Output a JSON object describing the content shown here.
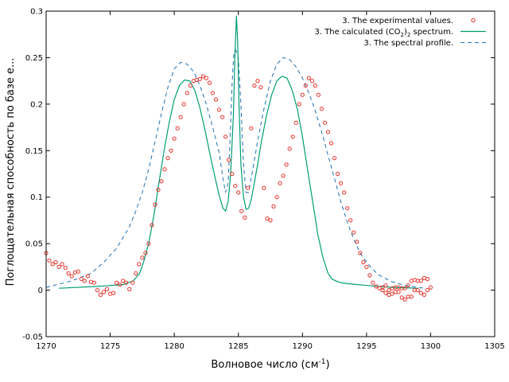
{
  "chart_data": {
    "type": "line",
    "title": "",
    "xlabel": "Волновое число (см",
    "xlabel_sup": "-1",
    "xlabel_end": ")",
    "ylabel": "Поглощательная способность по базе e...",
    "xlim": [
      1270,
      1305
    ],
    "ylim": [
      -0.05,
      0.3
    ],
    "xticks": [
      "1270",
      "1275",
      "1280",
      "1285",
      "1290",
      "1295",
      "1300",
      "1305"
    ],
    "yticks": [
      "-0.05",
      "0",
      "0.05",
      "0.1",
      "0.15",
      "0.2",
      "0.25",
      "0.3"
    ],
    "grid": false,
    "legend_position": "top-right",
    "legend": {
      "exp": "3.  The experimental values.",
      "calc_pre": "3. The calculated (CO",
      "calc_sub1": "2",
      "calc_mid": ")",
      "calc_sub2": "2",
      "calc_post": " spectrum.",
      "profile": "3. The spectral profile."
    },
    "colors": {
      "exp": "#e8302a",
      "calc": "#009e73",
      "profile": "#1f6fb4"
    },
    "series": [
      {
        "name": "3.  The experimental values.",
        "style": "points",
        "x": [
          1270.0,
          1270.25,
          1270.5,
          1270.75,
          1271.0,
          1271.25,
          1271.5,
          1271.75,
          1272.0,
          1272.25,
          1272.5,
          1272.75,
          1273.0,
          1273.25,
          1273.5,
          1273.75,
          1274.0,
          1274.25,
          1274.5,
          1274.75,
          1275.0,
          1275.25,
          1275.5,
          1275.75,
          1276.0,
          1276.25,
          1276.5,
          1276.75,
          1277.0,
          1277.25,
          1277.5,
          1277.75,
          1278.0,
          1278.25,
          1278.5,
          1278.75,
          1279.0,
          1279.25,
          1279.5,
          1279.75,
          1280.0,
          1280.25,
          1280.5,
          1280.75,
          1281.0,
          1281.25,
          1281.5,
          1281.75,
          1282.0,
          1282.25,
          1282.5,
          1282.75,
          1283.0,
          1283.25,
          1283.5,
          1283.75,
          1284.0,
          1284.25,
          1284.5,
          1284.75,
          1285.0,
          1285.25,
          1285.5,
          1285.75,
          1286.0,
          1286.25,
          1286.5,
          1286.75,
          1287.0,
          1287.25,
          1287.5,
          1287.75,
          1288.0,
          1288.25,
          1288.5,
          1288.75,
          1289.0,
          1289.25,
          1289.5,
          1289.75,
          1290.0,
          1290.25,
          1290.5,
          1290.75,
          1291.0,
          1291.25,
          1291.5,
          1291.75,
          1292.0,
          1292.25,
          1292.5,
          1292.75,
          1293.0,
          1293.25,
          1293.5,
          1293.75,
          1294.0,
          1294.25,
          1294.5,
          1294.75,
          1295.0,
          1295.25,
          1295.5,
          1295.75,
          1296.0,
          1296.25,
          1296.5,
          1296.75,
          1297.0,
          1297.25,
          1297.5,
          1297.75,
          1298.0,
          1298.25,
          1298.5,
          1298.75,
          1299.0,
          1299.25,
          1299.5,
          1299.75,
          1300.0
        ],
        "y": [
          0.04,
          0.032,
          0.028,
          0.03,
          0.025,
          0.028,
          0.024,
          0.018,
          0.015,
          0.019,
          0.02,
          0.012,
          0.01,
          0.015,
          0.009,
          0.008,
          0.0,
          -0.005,
          -0.002,
          0.001,
          -0.004,
          -0.003,
          0.008,
          0.006,
          0.01,
          0.008,
          0.001,
          0.008,
          0.018,
          0.028,
          0.035,
          0.04,
          0.05,
          0.07,
          0.092,
          0.108,
          0.117,
          0.13,
          0.142,
          0.15,
          0.163,
          0.174,
          0.186,
          0.2,
          0.212,
          0.22,
          0.225,
          0.226,
          0.227,
          0.23,
          0.228,
          0.223,
          0.212,
          0.205,
          0.194,
          0.186,
          0.165,
          0.14,
          0.125,
          0.112,
          0.105,
          0.085,
          0.078,
          0.11,
          0.174,
          0.22,
          0.225,
          0.218,
          0.11,
          0.077,
          0.075,
          0.09,
          0.1,
          0.115,
          0.123,
          0.135,
          0.152,
          0.165,
          0.18,
          0.2,
          0.21,
          0.22,
          0.228,
          0.225,
          0.22,
          0.21,
          0.195,
          0.18,
          0.17,
          0.158,
          0.142,
          0.125,
          0.115,
          0.105,
          0.088,
          0.075,
          0.062,
          0.052,
          0.04,
          0.03,
          0.025,
          0.016,
          0.008,
          0.004,
          0.002,
          0.003,
          0.005,
          0.0,
          0.002,
          0.003,
          -0.002,
          -0.008,
          -0.01,
          -0.007,
          -0.007,
          0.0,
          0.0,
          -0.003,
          -0.005,
          0.0,
          0.003
        ],
        "x_tail": [
          1296.25,
          1296.5,
          1296.75,
          1297.0,
          1297.25,
          1297.5,
          1297.75,
          1298.0,
          1298.25,
          1298.5,
          1298.75,
          1299.0,
          1299.25,
          1299.5,
          1299.75
        ],
        "y_tail": [
          0.0,
          -0.003,
          -0.005,
          -0.004,
          -0.002,
          0.003,
          0.002,
          0.002,
          0.005,
          0.01,
          0.011,
          0.01,
          0.01,
          0.013,
          0.012
        ]
      },
      {
        "name": "3. The calculated (CO2)2 spectrum.",
        "style": "solid",
        "x": [
          1271.0,
          1274.0,
          1276.0,
          1276.8,
          1277.3,
          1277.6,
          1278.0,
          1278.4,
          1278.8,
          1279.2,
          1279.6,
          1280.0,
          1280.4,
          1280.8,
          1281.2,
          1281.6,
          1282.0,
          1282.4,
          1282.8,
          1283.2,
          1283.5,
          1283.8,
          1284.0,
          1284.2,
          1284.4,
          1284.6,
          1284.75,
          1284.85,
          1284.95,
          1285.05,
          1285.2,
          1285.4,
          1285.6,
          1285.8,
          1286.0,
          1286.2,
          1286.5,
          1286.8,
          1287.2,
          1287.6,
          1288.0,
          1288.4,
          1288.8,
          1289.2,
          1289.6,
          1290.0,
          1290.4,
          1290.8,
          1291.2,
          1291.6,
          1292.0,
          1292.3,
          1292.6,
          1293.0,
          1293.5,
          1295.0,
          1297.0,
          1299.0
        ],
        "y": [
          0.002,
          0.004,
          0.006,
          0.01,
          0.018,
          0.03,
          0.05,
          0.08,
          0.115,
          0.15,
          0.18,
          0.205,
          0.22,
          0.226,
          0.225,
          0.215,
          0.196,
          0.172,
          0.145,
          0.12,
          0.102,
          0.088,
          0.085,
          0.095,
          0.125,
          0.185,
          0.26,
          0.295,
          0.265,
          0.2,
          0.135,
          0.1,
          0.087,
          0.088,
          0.097,
          0.112,
          0.135,
          0.16,
          0.188,
          0.21,
          0.225,
          0.23,
          0.228,
          0.215,
          0.195,
          0.165,
          0.13,
          0.095,
          0.06,
          0.035,
          0.018,
          0.012,
          0.01,
          0.008,
          0.007,
          0.005,
          0.003,
          0.002
        ]
      },
      {
        "name": "3. The spectral profile.",
        "style": "dashed",
        "x": [
          1270.0,
          1272.0,
          1273.5,
          1274.5,
          1275.5,
          1276.5,
          1277.0,
          1277.5,
          1278.0,
          1278.5,
          1279.0,
          1279.5,
          1280.0,
          1280.5,
          1281.0,
          1281.5,
          1282.0,
          1282.5,
          1283.0,
          1283.5,
          1283.8,
          1284.0,
          1284.2,
          1284.35,
          1284.5,
          1284.65,
          1284.8,
          1285.0,
          1285.2,
          1285.4,
          1285.6,
          1285.8,
          1286.0,
          1286.5,
          1287.0,
          1287.5,
          1288.0,
          1288.5,
          1289.0,
          1289.5,
          1290.0,
          1290.5,
          1291.0,
          1291.5,
          1292.0,
          1292.5,
          1293.0,
          1293.5,
          1294.0,
          1294.5,
          1295.0,
          1295.5,
          1296.0,
          1297.0,
          1298.0,
          1299.5
        ],
        "y": [
          0.003,
          0.01,
          0.018,
          0.03,
          0.045,
          0.068,
          0.085,
          0.105,
          0.13,
          0.16,
          0.19,
          0.218,
          0.238,
          0.245,
          0.243,
          0.235,
          0.22,
          0.2,
          0.175,
          0.148,
          0.12,
          0.105,
          0.115,
          0.16,
          0.22,
          0.255,
          0.258,
          0.25,
          0.2,
          0.135,
          0.105,
          0.105,
          0.12,
          0.16,
          0.195,
          0.225,
          0.243,
          0.25,
          0.248,
          0.24,
          0.228,
          0.212,
          0.193,
          0.17,
          0.145,
          0.12,
          0.095,
          0.073,
          0.055,
          0.04,
          0.03,
          0.022,
          0.016,
          0.009,
          0.005,
          0.002
        ]
      }
    ]
  }
}
